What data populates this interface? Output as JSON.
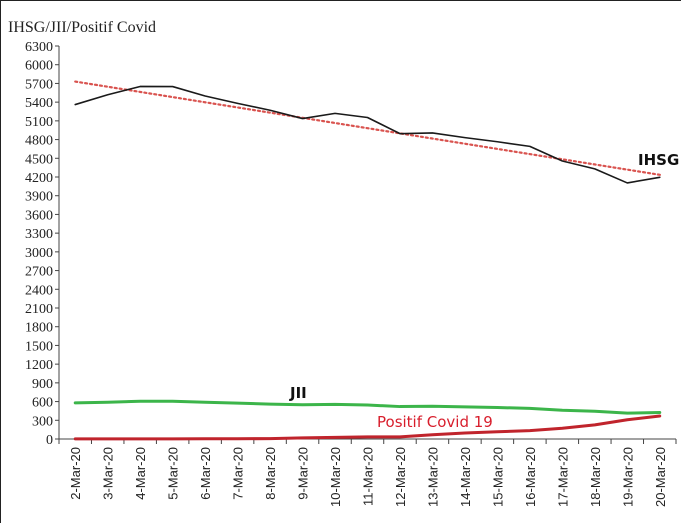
{
  "chart_data": {
    "type": "line",
    "title": "IHSG/JII/Positif Covid",
    "xlabel": "",
    "ylabel": "",
    "categories": [
      "2-Mar-20",
      "3-Mar-20",
      "4-Mar-20",
      "5-Mar-20",
      "6-Mar-20",
      "7-Mar-20",
      "8-Mar-20",
      "9-Mar-20",
      "10-Mar-20",
      "11-Mar-20",
      "12-Mar-20",
      "13-Mar-20",
      "14-Mar-20",
      "15-Mar-20",
      "16-Mar-20",
      "17-Mar-20",
      "18-Mar-20",
      "19-Mar-20",
      "20-Mar-20"
    ],
    "ylim": [
      0,
      6300
    ],
    "yticks": [
      6300,
      6000,
      5700,
      5400,
      5100,
      4800,
      4500,
      4200,
      3900,
      3600,
      3300,
      3000,
      2700,
      2400,
      2100,
      1800,
      1500,
      1200,
      900,
      600,
      300,
      0
    ],
    "series": [
      {
        "name": "IHSG",
        "color": "#1a1a1a",
        "values": [
          5361,
          5518,
          5651,
          5650,
          5498,
          5380,
          5270,
          5137,
          5220,
          5154,
          4895,
          4907,
          4831,
          4765,
          4691,
          4456,
          4330,
          4105,
          4195
        ]
      },
      {
        "name": "JII",
        "color": "#3cb54a",
        "values": [
          580,
          590,
          605,
          605,
          590,
          575,
          560,
          550,
          555,
          545,
          520,
          525,
          515,
          505,
          490,
          460,
          445,
          415,
          425
        ]
      },
      {
        "name": "Positif Covid 19",
        "color": "#c0242c",
        "values": [
          2,
          2,
          2,
          2,
          4,
          4,
          6,
          19,
          27,
          34,
          34,
          69,
          96,
          117,
          134,
          172,
          227,
          309,
          369
        ]
      }
    ],
    "trendline": {
      "series": "IHSG",
      "type": "linear",
      "style": "dotted",
      "color": "#d9534f",
      "start": 5730,
      "end": 4230
    },
    "grid": false,
    "legend": "none"
  }
}
